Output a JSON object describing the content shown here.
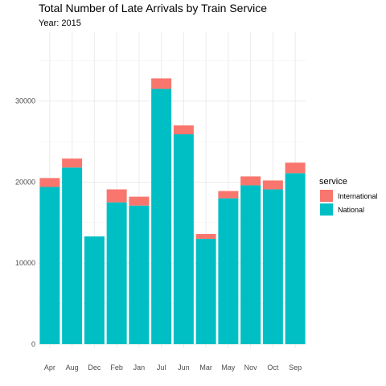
{
  "chart_data": {
    "type": "bar",
    "stacked": true,
    "title": "Total Number of Late Arrivals by Train Service",
    "subtitle": "Year: 2015",
    "xlabel": "",
    "ylabel": "",
    "ylim": [
      0,
      38500
    ],
    "yticks": [
      0,
      10000,
      20000,
      30000
    ],
    "grid": true,
    "legend_position": "right",
    "legend_title": "service",
    "categories": [
      "Apr",
      "Aug",
      "Dec",
      "Feb",
      "Jan",
      "Jul",
      "Jun",
      "Mar",
      "May",
      "Nov",
      "Oct",
      "Sep"
    ],
    "series": [
      {
        "name": "National",
        "color": "#00BFC4",
        "values": [
          19400,
          21800,
          13300,
          17500,
          17100,
          31500,
          25900,
          13000,
          18000,
          19600,
          19100,
          21100
        ]
      },
      {
        "name": "International",
        "color": "#F8766D",
        "values": [
          1100,
          1100,
          0,
          1600,
          1100,
          1300,
          1100,
          600,
          900,
          1100,
          1100,
          1300
        ]
      }
    ],
    "legend_order": [
      "International",
      "National"
    ]
  }
}
